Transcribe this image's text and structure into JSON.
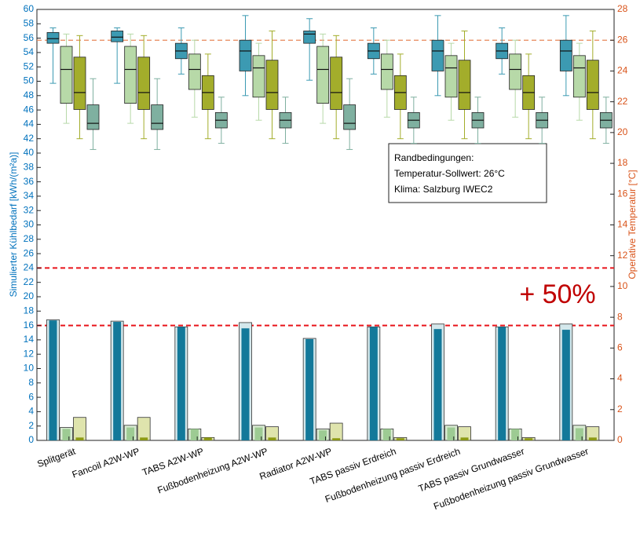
{
  "chart_data": {
    "type": "bar-box",
    "ylabel": "Simulierter Kühlbedarf [kWh/(m²a)]",
    "y2label": "Operative Temperatur [°C]",
    "categories": [
      "Splitgerät",
      "Fancoil A2W-WP",
      "TABS A2W-WP",
      "Fußbodenheizung A2W-WP",
      "Radiator A2W-WP",
      "TABS passiv Erdreich",
      "Fußbodenheizung passiv Erdreich",
      "TABS passiv Grundwasser",
      "Fußbodenheizung passiv Grundwasser"
    ],
    "ylim": [
      0,
      60
    ],
    "yticks": [
      0,
      2,
      4,
      6,
      8,
      10,
      12,
      14,
      16,
      18,
      20,
      22,
      24,
      26,
      28,
      30,
      32,
      34,
      36,
      38,
      40,
      42,
      44,
      46,
      48,
      50,
      52,
      54,
      56,
      58,
      60
    ],
    "y2lim": [
      0,
      28
    ],
    "y2ticks": [
      0,
      2,
      4,
      6,
      8,
      10,
      12,
      14,
      16,
      18,
      20,
      22,
      24,
      26,
      28
    ],
    "series": [
      {
        "color": "#d4e8ec",
        "values": [
          16.8,
          16.6,
          15.8,
          16.4,
          14.2,
          15.8,
          16.2,
          15.8,
          16.2
        ]
      },
      {
        "color": "#d8ead2",
        "values": [
          1.8,
          2.1,
          1.6,
          2.1,
          1.6,
          1.6,
          2.1,
          1.6,
          2.1
        ]
      },
      {
        "color": "#dfe4ad",
        "values": [
          3.2,
          3.2,
          0.4,
          1.9,
          2.4,
          0.4,
          1.9,
          0.4,
          1.9
        ]
      },
      {
        "color": "#13799a",
        "values": [
          16.7,
          16.5,
          15.8,
          15.6,
          14.1,
          15.8,
          15.5,
          15.8,
          15.4
        ]
      },
      {
        "color": "#9dcb93",
        "values": [
          1.6,
          1.8,
          1.6,
          1.8,
          1.4,
          1.6,
          1.8,
          1.6,
          1.7
        ]
      },
      {
        "color": "#8d9a14",
        "values": [
          0.4,
          0.4,
          0.4,
          0.4,
          0.3,
          0.3,
          0.4,
          0.3,
          0.4
        ]
      }
    ],
    "boxes": [
      {
        "color": "#3c9ab2",
        "axis": "y2",
        "stats": [
          [
            23.2,
            25.8,
            26.1,
            26.5,
            26.8
          ],
          [
            23.2,
            25.9,
            26.2,
            26.6,
            26.8
          ],
          [
            23.8,
            24.8,
            25.3,
            25.8,
            26.8
          ],
          [
            22.4,
            24.0,
            25.3,
            26.0,
            27.6
          ],
          [
            23.4,
            25.8,
            26.4,
            26.6,
            27.4
          ],
          [
            23.8,
            24.8,
            25.3,
            25.8,
            26.8
          ],
          [
            22.4,
            24.0,
            25.3,
            26.0,
            27.6
          ],
          [
            23.8,
            24.8,
            25.3,
            25.8,
            26.8
          ],
          [
            22.4,
            24.0,
            25.3,
            26.0,
            27.6
          ]
        ]
      },
      {
        "color": "#b7d9a8",
        "axis": "y2",
        "stats": [
          [
            20.6,
            21.9,
            24.1,
            25.6,
            26.4
          ],
          [
            20.6,
            21.9,
            24.1,
            25.6,
            26.4
          ],
          [
            21.0,
            22.8,
            24.1,
            25.1,
            26.0
          ],
          [
            20.8,
            22.3,
            24.2,
            25.0,
            25.8
          ],
          [
            20.6,
            21.9,
            24.1,
            25.6,
            26.4
          ],
          [
            21.0,
            22.8,
            24.1,
            25.1,
            26.0
          ],
          [
            20.8,
            22.3,
            24.2,
            25.0,
            25.8
          ],
          [
            21.0,
            22.8,
            24.1,
            25.1,
            26.0
          ],
          [
            20.8,
            22.3,
            24.2,
            25.0,
            25.8
          ]
        ]
      },
      {
        "color": "#a3ad2b",
        "axis": "y2",
        "stats": [
          [
            19.6,
            21.5,
            22.6,
            24.9,
            26.3
          ],
          [
            19.6,
            21.5,
            22.6,
            24.9,
            26.3
          ],
          [
            19.6,
            21.5,
            22.6,
            23.7,
            25.1
          ],
          [
            19.6,
            21.5,
            22.6,
            24.7,
            26.6
          ],
          [
            19.6,
            21.5,
            22.6,
            24.9,
            26.3
          ],
          [
            19.6,
            21.5,
            22.6,
            23.7,
            25.1
          ],
          [
            19.6,
            21.5,
            22.6,
            24.7,
            26.6
          ],
          [
            19.6,
            21.5,
            22.6,
            23.7,
            25.1
          ],
          [
            19.6,
            21.5,
            22.6,
            24.7,
            26.6
          ]
        ]
      },
      {
        "color": "#7fb0a0",
        "axis": "y2",
        "stats": [
          [
            18.9,
            20.2,
            20.6,
            21.8,
            23.5
          ],
          [
            18.9,
            20.2,
            20.6,
            21.8,
            23.5
          ],
          [
            19.3,
            20.3,
            20.8,
            21.3,
            22.3
          ],
          [
            19.3,
            20.3,
            20.8,
            21.3,
            22.3
          ],
          [
            18.9,
            20.2,
            20.6,
            21.8,
            23.5
          ],
          [
            19.3,
            20.3,
            20.8,
            21.3,
            22.3
          ],
          [
            19.3,
            20.3,
            20.8,
            21.3,
            22.3
          ],
          [
            19.3,
            20.3,
            20.8,
            21.3,
            22.3
          ],
          [
            19.3,
            20.3,
            20.8,
            21.3,
            22.3
          ]
        ]
      }
    ],
    "reference_lines": [
      {
        "axis": "y2",
        "value": 26,
        "color": "#e8875a"
      },
      {
        "axis": "y",
        "value": 24,
        "color": "#e8141a"
      },
      {
        "axis": "y",
        "value": 16,
        "color": "#e8141a"
      }
    ],
    "annotation": "+ 50%",
    "textbox": [
      "Randbedingungen:",
      "Temperatur-Sollwert: 26°C",
      "Klima: Salzburg IWEC2"
    ]
  }
}
